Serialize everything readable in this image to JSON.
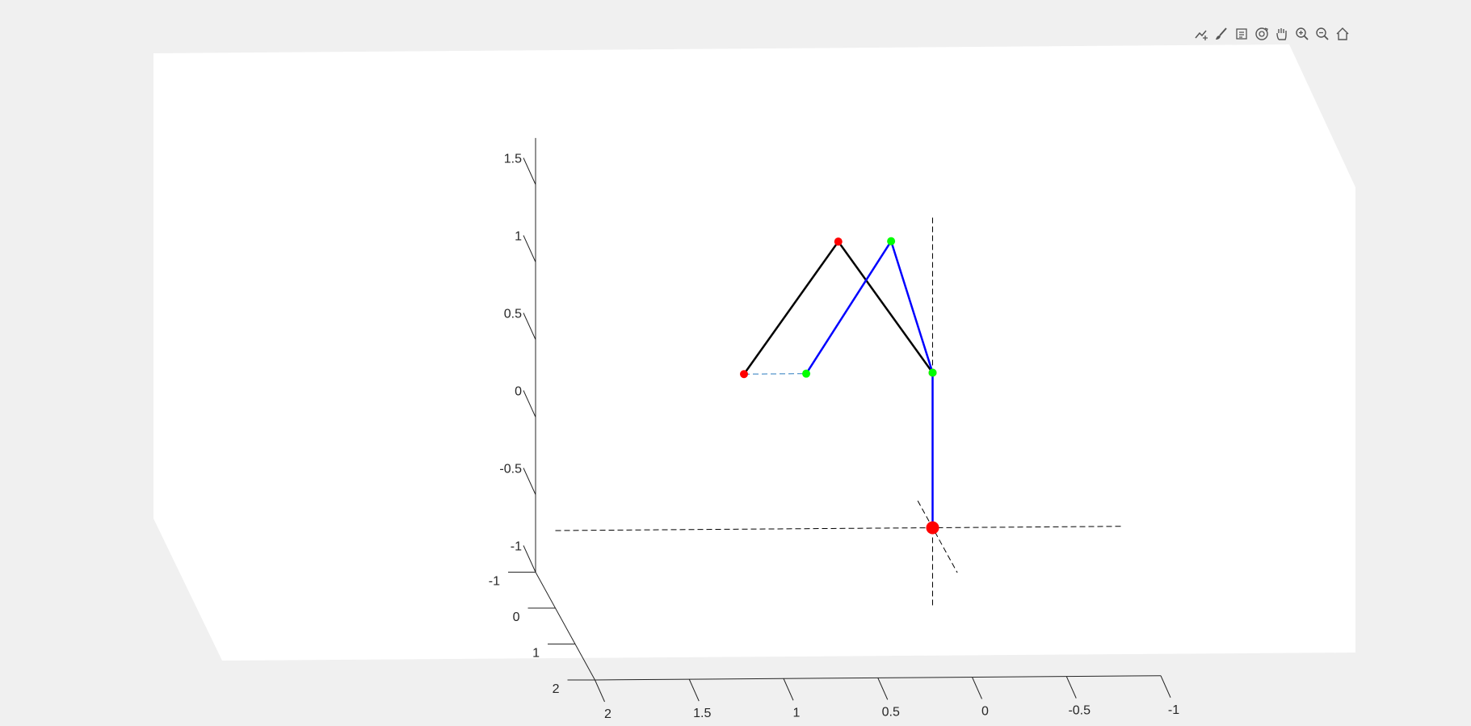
{
  "chart_data": {
    "type": "line3d",
    "axes": {
      "x": {
        "ticks": [
          2,
          1.5,
          1,
          0.5,
          0,
          -0.5,
          -1
        ],
        "tick_labels": [
          "2",
          "1.5",
          "1",
          "0.5",
          "0",
          "-0.5",
          "-1"
        ],
        "range": [
          -1,
          2
        ],
        "reversed": true
      },
      "y": {
        "ticks": [
          -1,
          0,
          1,
          2
        ],
        "tick_labels": [
          "-1",
          "0",
          "1",
          "2"
        ],
        "range": [
          -1,
          2
        ]
      },
      "z": {
        "ticks": [
          -1,
          -0.5,
          0,
          0.5,
          1,
          1.5
        ],
        "tick_labels": [
          "-1",
          "-0.5",
          "0",
          "0.5",
          "1",
          "1.5"
        ],
        "range": [
          -1,
          1.8
        ]
      }
    },
    "grid": false,
    "reference_axes": [
      {
        "name": "x-reference",
        "style": "dashed",
        "color": "#000000",
        "from": [
          2,
          0,
          -0.5
        ],
        "to": [
          -1,
          0,
          -0.5
        ]
      },
      {
        "name": "z-reference",
        "style": "dashed",
        "color": "#000000",
        "from": [
          0,
          0,
          -1
        ],
        "to": [
          0,
          0,
          1.5
        ]
      },
      {
        "name": "y-reference",
        "style": "dashed",
        "color": "#000000",
        "from": [
          0,
          -0.75,
          -0.5
        ],
        "to": [
          0,
          1.25,
          -0.5
        ]
      }
    ],
    "series": [
      {
        "color": "#000000",
        "marker_color": "#ff0000",
        "style": "solid",
        "points": [
          [
            1,
            0,
            0.5
          ],
          [
            0.5,
            0,
            1.35
          ],
          [
            0,
            0,
            0.5
          ]
        ]
      },
      {
        "color": "#0000ff",
        "marker_color": "#00ff00",
        "style": "solid",
        "points": [
          [
            0,
            0,
            -0.5
          ],
          [
            0,
            0,
            0.5
          ],
          [
            0.22,
            0,
            1.35
          ],
          [
            0.67,
            0,
            0.5
          ]
        ]
      },
      {
        "color": "#2b7bbf",
        "style": "dashed",
        "points": [
          [
            1,
            0,
            0.5
          ],
          [
            0.67,
            0,
            0.5
          ]
        ]
      }
    ],
    "origin_marker": {
      "point": [
        0,
        0,
        -0.5
      ],
      "color": "#ff0000"
    }
  },
  "toolbar": {
    "icons": [
      "export-icon",
      "brush-icon",
      "legend-icon",
      "rotate-icon",
      "pan-icon",
      "zoom-in-icon",
      "zoom-out-icon",
      "home-icon"
    ]
  },
  "colors": {
    "figure_background": "#f0f0f0",
    "axes_background": "#ffffff",
    "axis_line": "#262626"
  }
}
